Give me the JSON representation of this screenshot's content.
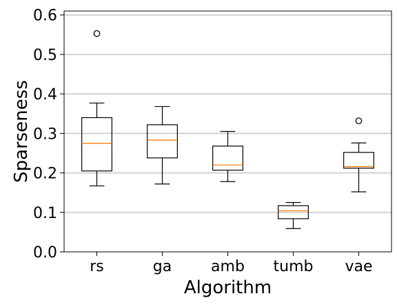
{
  "chart_data": {
    "type": "box",
    "title": "",
    "xlabel": "Algorithm",
    "ylabel": "Sparseness",
    "ylim": [
      0.0,
      0.61
    ],
    "yticks": [
      0.0,
      0.1,
      0.2,
      0.3,
      0.4,
      0.5,
      0.6
    ],
    "ytick_labels": [
      "0.0",
      "0.1",
      "0.2",
      "0.3",
      "0.4",
      "0.5",
      "0.6"
    ],
    "grid": "horizontal",
    "colors": {
      "box": "#000000",
      "median": "#ff7f0e",
      "grid": "#d3d3d3"
    },
    "categories": [
      "rs",
      "ga",
      "amb",
      "tumb",
      "vae"
    ],
    "boxes": [
      {
        "label": "rs",
        "whislo": 0.167,
        "q1": 0.205,
        "med": 0.275,
        "q3": 0.34,
        "whishi": 0.377,
        "fliers": [
          0.553
        ]
      },
      {
        "label": "ga",
        "whislo": 0.172,
        "q1": 0.238,
        "med": 0.283,
        "q3": 0.322,
        "whishi": 0.368,
        "fliers": []
      },
      {
        "label": "amb",
        "whislo": 0.178,
        "q1": 0.207,
        "med": 0.22,
        "q3": 0.268,
        "whishi": 0.305,
        "fliers": []
      },
      {
        "label": "tumb",
        "whislo": 0.059,
        "q1": 0.084,
        "med": 0.104,
        "q3": 0.117,
        "whishi": 0.125,
        "fliers": []
      },
      {
        "label": "vae",
        "whislo": 0.152,
        "q1": 0.212,
        "med": 0.216,
        "q3": 0.252,
        "whishi": 0.276,
        "fliers": [
          0.332
        ]
      }
    ]
  }
}
